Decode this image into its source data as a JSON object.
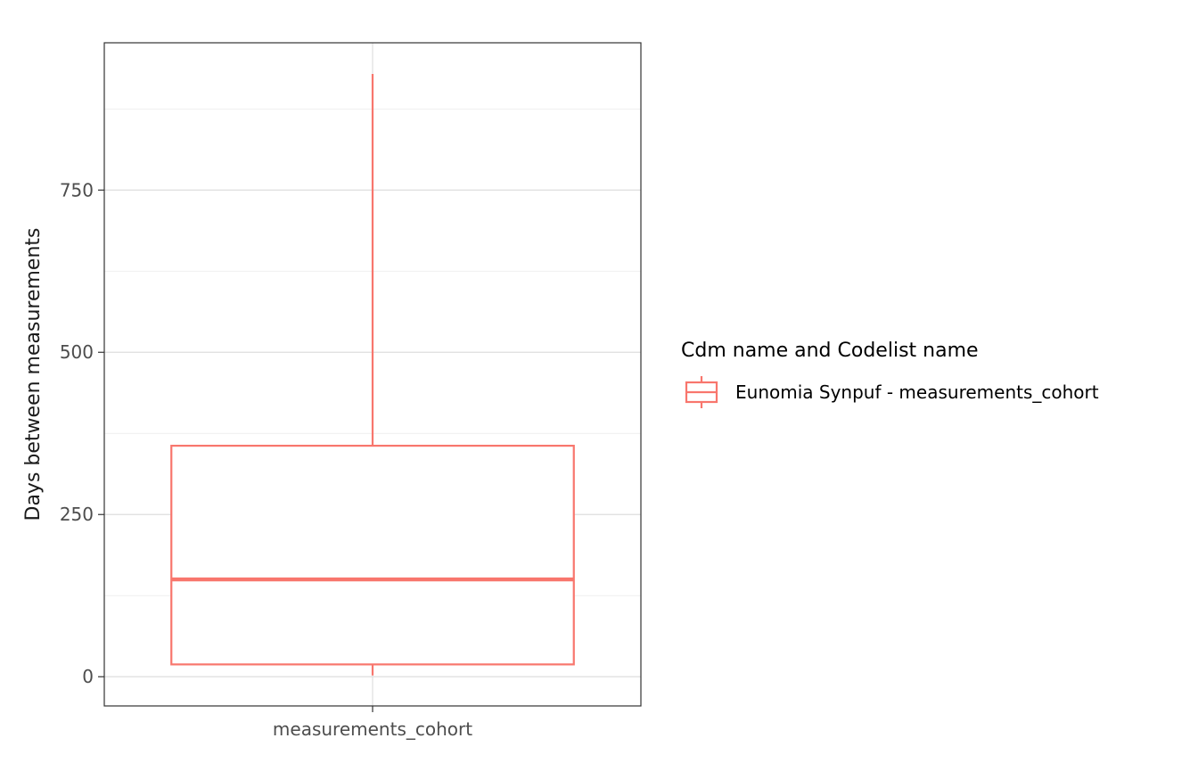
{
  "chart_data": {
    "type": "boxplot",
    "categories": [
      "measurements_cohort"
    ],
    "series": [
      {
        "name": "Eunomia Synpuf - measurements_cohort",
        "color": "#f8766d",
        "boxes": [
          {
            "category": "measurements_cohort",
            "min": 2,
            "q1": 19,
            "median": 150,
            "q3": 356,
            "max": 929
          }
        ]
      }
    ],
    "xlabel": "",
    "ylabel": "Days between measurements",
    "ylim": [
      -45,
      977
    ],
    "yticks": [
      0,
      250,
      500,
      750
    ],
    "grid": true,
    "legend": {
      "title": "Cdm name and Codelist name",
      "position": "right",
      "entries": [
        "Eunomia Synpuf - measurements_cohort"
      ]
    }
  }
}
